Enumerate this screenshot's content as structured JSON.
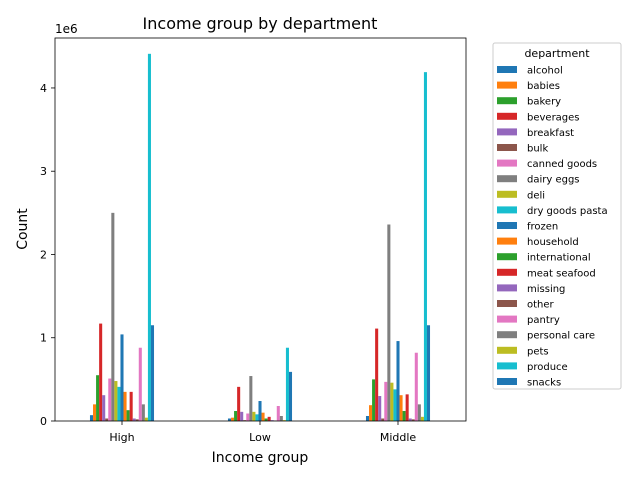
{
  "chart_data": {
    "type": "bar",
    "title": "Income group by department",
    "xlabel": "Income group",
    "ylabel": "Count",
    "scale_label": "1e6",
    "categories": [
      "High",
      "Low",
      "Middle"
    ],
    "ylim": [
      0,
      4600000
    ],
    "yticks": [
      0,
      1,
      2,
      3,
      4
    ],
    "legend_title": "department",
    "legend_position": "outside-right",
    "grid": false,
    "series": [
      {
        "name": "alcohol",
        "color": "#1f77b4",
        "values": [
          70000,
          30000,
          60000
        ]
      },
      {
        "name": "babies",
        "color": "#ff7f0e",
        "values": [
          200000,
          40000,
          190000
        ]
      },
      {
        "name": "bakery",
        "color": "#2ca02c",
        "values": [
          550000,
          120000,
          500000
        ]
      },
      {
        "name": "beverages",
        "color": "#d62728",
        "values": [
          1170000,
          410000,
          1110000
        ]
      },
      {
        "name": "breakfast",
        "color": "#9467bd",
        "values": [
          310000,
          110000,
          300000
        ]
      },
      {
        "name": "bulk",
        "color": "#8c564b",
        "values": [
          30000,
          10000,
          30000
        ]
      },
      {
        "name": "canned goods",
        "color": "#e377c2",
        "values": [
          510000,
          90000,
          470000
        ]
      },
      {
        "name": "dairy eggs",
        "color": "#7f7f7f",
        "values": [
          2500000,
          540000,
          2360000
        ]
      },
      {
        "name": "deli",
        "color": "#bcbd22",
        "values": [
          480000,
          110000,
          460000
        ]
      },
      {
        "name": "dry goods pasta",
        "color": "#17becf",
        "values": [
          410000,
          80000,
          380000
        ]
      },
      {
        "name": "frozen",
        "color": "#1f77b4",
        "values": [
          1040000,
          240000,
          960000
        ]
      },
      {
        "name": "household",
        "color": "#ff7f0e",
        "values": [
          350000,
          100000,
          310000
        ]
      },
      {
        "name": "international",
        "color": "#2ca02c",
        "values": [
          130000,
          30000,
          120000
        ]
      },
      {
        "name": "meat seafood",
        "color": "#d62728",
        "values": [
          350000,
          50000,
          320000
        ]
      },
      {
        "name": "missing",
        "color": "#9467bd",
        "values": [
          30000,
          10000,
          30000
        ]
      },
      {
        "name": "other",
        "color": "#8c564b",
        "values": [
          20000,
          5000,
          20000
        ]
      },
      {
        "name": "pantry",
        "color": "#e377c2",
        "values": [
          880000,
          180000,
          820000
        ]
      },
      {
        "name": "personal care",
        "color": "#7f7f7f",
        "values": [
          200000,
          60000,
          200000
        ]
      },
      {
        "name": "pets",
        "color": "#bcbd22",
        "values": [
          40000,
          10000,
          50000
        ]
      },
      {
        "name": "produce",
        "color": "#17becf",
        "values": [
          4410000,
          880000,
          4190000
        ]
      },
      {
        "name": "snacks",
        "color": "#1f77b4",
        "values": [
          1150000,
          590000,
          1150000
        ]
      }
    ]
  }
}
